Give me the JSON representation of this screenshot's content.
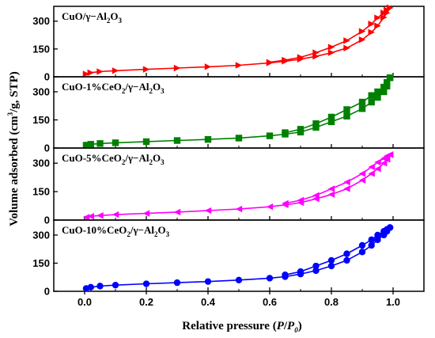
{
  "chart_data": {
    "type": "line",
    "xlabel": {
      "prefix": "Relative pressure (",
      "var": "P",
      "mid": "/",
      "var2": "P",
      "sub": "0",
      "suffix": ")"
    },
    "ylabel": {
      "prefix": "Volume adsorbed (cm",
      "sup": "3",
      "suffix": "/g, STP)"
    },
    "xlim": [
      -0.1,
      1.1
    ],
    "x_ticks": [
      0.0,
      0.2,
      0.4,
      0.6,
      0.8,
      1.0
    ],
    "x_tick_labels": [
      "0.0",
      "0.2",
      "0.4",
      "0.6",
      "0.8",
      "1.0"
    ],
    "ylim": [
      0,
      380
    ],
    "y_ticks": [
      0,
      150,
      300
    ],
    "y_tick_labels": [
      "0",
      "150",
      "300"
    ],
    "panels": [
      {
        "label_parts": [
          [
            "CuO/γ−Al",
            false
          ],
          [
            "2",
            true
          ],
          [
            "O",
            false
          ],
          [
            "3",
            true
          ]
        ],
        "color": "#ff0000",
        "marker": "triangle-right",
        "adsorption": [
          [
            0.005,
            15
          ],
          [
            0.02,
            22
          ],
          [
            0.05,
            28
          ],
          [
            0.1,
            33
          ],
          [
            0.2,
            40
          ],
          [
            0.3,
            47
          ],
          [
            0.4,
            54
          ],
          [
            0.5,
            62
          ],
          [
            0.6,
            75
          ],
          [
            0.65,
            84
          ],
          [
            0.7,
            95
          ],
          [
            0.75,
            110
          ],
          [
            0.8,
            130
          ],
          [
            0.85,
            155
          ],
          [
            0.9,
            200
          ],
          [
            0.93,
            240
          ],
          [
            0.95,
            275
          ],
          [
            0.97,
            320
          ],
          [
            0.98,
            345
          ],
          [
            0.99,
            372
          ]
        ],
        "desorption": [
          [
            0.99,
            372
          ],
          [
            0.98,
            360
          ],
          [
            0.97,
            345
          ],
          [
            0.95,
            318
          ],
          [
            0.93,
            285
          ],
          [
            0.9,
            245
          ],
          [
            0.85,
            195
          ],
          [
            0.8,
            160
          ],
          [
            0.75,
            130
          ],
          [
            0.7,
            105
          ],
          [
            0.65,
            90
          ],
          [
            0.6,
            78
          ]
        ]
      },
      {
        "label_parts": [
          [
            "CuO-1%CeO",
            false
          ],
          [
            "2",
            true
          ],
          [
            "/γ−Al",
            false
          ],
          [
            "2",
            true
          ],
          [
            "O",
            false
          ],
          [
            "3",
            true
          ]
        ],
        "color": "#008000",
        "marker": "square",
        "adsorption": [
          [
            0.005,
            15
          ],
          [
            0.02,
            20
          ],
          [
            0.05,
            24
          ],
          [
            0.1,
            28
          ],
          [
            0.2,
            34
          ],
          [
            0.3,
            40
          ],
          [
            0.4,
            46
          ],
          [
            0.5,
            53
          ],
          [
            0.6,
            65
          ],
          [
            0.65,
            74
          ],
          [
            0.7,
            85
          ],
          [
            0.75,
            110
          ],
          [
            0.8,
            140
          ],
          [
            0.85,
            170
          ],
          [
            0.9,
            210
          ],
          [
            0.93,
            245
          ],
          [
            0.95,
            270
          ],
          [
            0.97,
            300
          ],
          [
            0.98,
            330
          ],
          [
            0.99,
            375
          ]
        ],
        "desorption": [
          [
            0.99,
            375
          ],
          [
            0.98,
            350
          ],
          [
            0.97,
            325
          ],
          [
            0.95,
            300
          ],
          [
            0.93,
            280
          ],
          [
            0.9,
            245
          ],
          [
            0.85,
            205
          ],
          [
            0.8,
            165
          ],
          [
            0.75,
            130
          ],
          [
            0.7,
            100
          ],
          [
            0.65,
            82
          ]
        ]
      },
      {
        "label_parts": [
          [
            "CuO-5%CeO",
            false
          ],
          [
            "2",
            true
          ],
          [
            "/γ−Al",
            false
          ],
          [
            "2",
            true
          ],
          [
            "O",
            false
          ],
          [
            "3",
            true
          ]
        ],
        "color": "#ff00ff",
        "marker": "triangle-left",
        "adsorption": [
          [
            0.005,
            15
          ],
          [
            0.02,
            20
          ],
          [
            0.05,
            24
          ],
          [
            0.1,
            29
          ],
          [
            0.2,
            35
          ],
          [
            0.3,
            42
          ],
          [
            0.4,
            50
          ],
          [
            0.5,
            58
          ],
          [
            0.6,
            70
          ],
          [
            0.65,
            80
          ],
          [
            0.7,
            92
          ],
          [
            0.75,
            112
          ],
          [
            0.8,
            135
          ],
          [
            0.85,
            165
          ],
          [
            0.9,
            210
          ],
          [
            0.93,
            245
          ],
          [
            0.95,
            270
          ],
          [
            0.97,
            300
          ],
          [
            0.98,
            320
          ],
          [
            0.99,
            345
          ]
        ],
        "desorption": [
          [
            0.99,
            345
          ],
          [
            0.98,
            338
          ],
          [
            0.97,
            325
          ],
          [
            0.95,
            305
          ],
          [
            0.93,
            280
          ],
          [
            0.9,
            245
          ],
          [
            0.85,
            200
          ],
          [
            0.8,
            165
          ],
          [
            0.75,
            130
          ],
          [
            0.7,
            105
          ],
          [
            0.65,
            88
          ]
        ]
      },
      {
        "label_parts": [
          [
            "CuO-10%CeO",
            false
          ],
          [
            "2",
            true
          ],
          [
            "/γ−Al",
            false
          ],
          [
            "2",
            true
          ],
          [
            "O",
            false
          ],
          [
            "3",
            true
          ]
        ],
        "color": "#0000ff",
        "marker": "circle",
        "adsorption": [
          [
            0.005,
            15
          ],
          [
            0.02,
            22
          ],
          [
            0.05,
            28
          ],
          [
            0.1,
            33
          ],
          [
            0.2,
            40
          ],
          [
            0.3,
            46
          ],
          [
            0.4,
            52
          ],
          [
            0.5,
            60
          ],
          [
            0.6,
            70
          ],
          [
            0.65,
            78
          ],
          [
            0.7,
            92
          ],
          [
            0.75,
            110
          ],
          [
            0.8,
            135
          ],
          [
            0.85,
            165
          ],
          [
            0.9,
            210
          ],
          [
            0.93,
            245
          ],
          [
            0.95,
            275
          ],
          [
            0.97,
            300
          ],
          [
            0.98,
            320
          ],
          [
            0.99,
            340
          ]
        ],
        "desorption": [
          [
            0.99,
            340
          ],
          [
            0.98,
            330
          ],
          [
            0.97,
            320
          ],
          [
            0.95,
            300
          ],
          [
            0.93,
            275
          ],
          [
            0.9,
            245
          ],
          [
            0.85,
            200
          ],
          [
            0.8,
            165
          ],
          [
            0.75,
            135
          ],
          [
            0.7,
            105
          ],
          [
            0.65,
            88
          ]
        ]
      }
    ]
  }
}
